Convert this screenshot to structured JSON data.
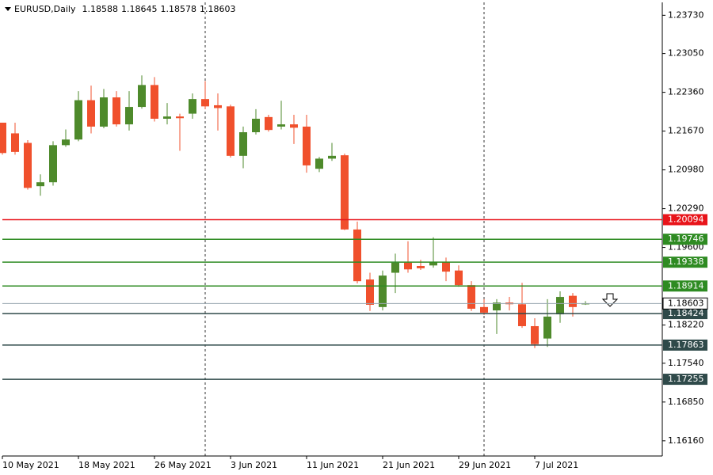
{
  "chart_data": {
    "type": "candlestick",
    "title": "EURUSD,Daily",
    "header_ohlc": [
      1.18588,
      1.18645,
      1.18578,
      1.18603
    ],
    "categories": [
      "10 May 2021",
      null,
      null,
      null,
      null,
      null,
      "18 May 2021",
      null,
      null,
      null,
      null,
      null,
      "26 May 2021",
      null,
      null,
      null,
      null,
      null,
      "3 Jun 2021",
      null,
      null,
      null,
      null,
      null,
      "11 Jun 2021",
      null,
      null,
      null,
      null,
      null,
      "21 Jun 2021",
      null,
      null,
      null,
      null,
      null,
      "29 Jun 2021",
      null,
      null,
      null,
      null,
      null,
      "7 Jul 2021",
      null,
      null,
      null,
      null
    ],
    "open": [
      1.2182,
      1.2163,
      1.2146,
      1.2069,
      1.2076,
      1.2142,
      1.2152,
      1.2222,
      1.2175,
      1.2227,
      1.2179,
      1.221,
      1.2249,
      1.2189,
      1.2193,
      1.2198,
      1.2224,
      1.2213,
      1.2211,
      1.2123,
      1.2165,
      1.2192,
      1.2175,
      1.2179,
      1.2175,
      1.21,
      1.2118,
      1.2124,
      1.1992,
      1.1903,
      1.1854,
      1.1915,
      1.1933,
      1.1927,
      1.1928,
      1.1934,
      1.1919,
      1.1893,
      1.1854,
      1.1848,
      1.1862,
      1.1859,
      1.182,
      1.1798,
      1.1841,
      1.1874,
      1.18588
    ],
    "high": [
      1.2182,
      1.2182,
      1.2151,
      1.209,
      1.2149,
      1.217,
      1.2238,
      1.2248,
      1.2242,
      1.2238,
      1.2238,
      1.2266,
      1.2263,
      1.2217,
      1.2198,
      1.2234,
      1.2256,
      1.2234,
      1.2214,
      1.2175,
      1.2206,
      1.2196,
      1.2221,
      1.2196,
      1.2196,
      1.2121,
      1.2146,
      1.2127,
      1.2006,
      1.1915,
      1.1919,
      1.1949,
      1.1971,
      1.1938,
      1.1978,
      1.1942,
      1.1928,
      1.19,
      1.1868,
      1.1868,
      1.1872,
      1.1897,
      1.1834,
      1.1868,
      1.1882,
      1.1879,
      1.18645
    ],
    "low": [
      1.2125,
      1.2125,
      1.2063,
      1.2052,
      1.207,
      1.2139,
      1.2149,
      1.2163,
      1.2172,
      1.2175,
      1.2168,
      1.2207,
      1.2184,
      1.2179,
      1.2132,
      1.2189,
      1.2206,
      1.2168,
      1.212,
      1.2101,
      1.2161,
      1.2166,
      1.217,
      1.2144,
      1.2093,
      1.2094,
      1.2114,
      1.1991,
      1.1896,
      1.1847,
      1.1848,
      1.1879,
      1.1915,
      1.192,
      1.1924,
      1.19,
      1.189,
      1.1847,
      1.184,
      1.1806,
      1.1848,
      1.1817,
      1.1781,
      1.1783,
      1.1826,
      1.1837,
      1.18578
    ],
    "close": [
      1.2128,
      1.213,
      1.2066,
      1.2076,
      1.2142,
      1.2152,
      1.2222,
      1.2175,
      1.2227,
      1.2179,
      1.221,
      1.2249,
      1.2189,
      1.2193,
      1.219,
      1.2224,
      1.2211,
      1.2208,
      1.2123,
      1.2165,
      1.2189,
      1.2169,
      1.2179,
      1.2173,
      1.2106,
      1.2118,
      1.2123,
      1.1992,
      1.19,
      1.1858,
      1.191,
      1.1933,
      1.1921,
      1.1923,
      1.1934,
      1.1917,
      1.1893,
      1.1851,
      1.1844,
      1.1862,
      1.1859,
      1.182,
      1.1788,
      1.1837,
      1.1872,
      1.1854,
      1.18603
    ],
    "up_color": "#4e8a2b",
    "down_color": "#f0502c",
    "ylim": [
      1.1589,
      1.2396
    ],
    "yticks": [
      {
        "value": 1.2373,
        "label": "1.23730"
      },
      {
        "value": 1.2305,
        "label": "1.23050"
      },
      {
        "value": 1.2236,
        "label": "1.22360"
      },
      {
        "value": 1.2167,
        "label": "1.21670"
      },
      {
        "value": 1.2098,
        "label": "1.20980"
      },
      {
        "value": 1.2029,
        "label": "1.20290"
      },
      {
        "value": 1.196,
        "label": "1.19600"
      },
      {
        "value": 1.1822,
        "label": "1.18220"
      },
      {
        "value": 1.1754,
        "label": "1.17540"
      },
      {
        "value": 1.1685,
        "label": "1.16850"
      },
      {
        "value": 1.1616,
        "label": "1.16160"
      }
    ],
    "levels": [
      {
        "value": 1.20094,
        "color": "#e8141a"
      },
      {
        "value": 1.19746,
        "color": "#2e8b22"
      },
      {
        "value": 1.19338,
        "color": "#2e8b22"
      },
      {
        "value": 1.18914,
        "color": "#2e8b22"
      },
      {
        "value": 1.18424,
        "color": "#2f4a4a"
      },
      {
        "value": 1.17863,
        "color": "#2f4a4a"
      },
      {
        "value": 1.17255,
        "color": "#2f4a4a"
      }
    ],
    "current_price": 1.18603,
    "period_separators": [
      16,
      38
    ]
  }
}
